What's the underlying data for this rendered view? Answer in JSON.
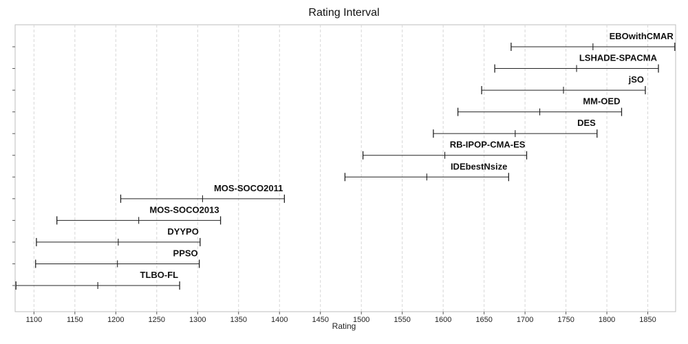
{
  "chart_data": {
    "type": "interval",
    "title": "Rating Interval",
    "xlabel": "Rating",
    "ylabel": "",
    "xlim": [
      1077,
      1884
    ],
    "x_ticks": [
      1100,
      1150,
      1200,
      1250,
      1300,
      1350,
      1400,
      1450,
      1500,
      1550,
      1600,
      1650,
      1700,
      1750,
      1800,
      1850
    ],
    "grid": "vertical dashed",
    "series": [
      {
        "name": "EBOwithCMAR",
        "low": 1683,
        "mid": 1783,
        "high": 1883
      },
      {
        "name": "LSHADE-SPACMA",
        "low": 1663,
        "mid": 1763,
        "high": 1863
      },
      {
        "name": "jSO",
        "low": 1647,
        "mid": 1747,
        "high": 1847
      },
      {
        "name": "MM-OED",
        "low": 1618,
        "mid": 1718,
        "high": 1818
      },
      {
        "name": "DES",
        "low": 1588,
        "mid": 1688,
        "high": 1788
      },
      {
        "name": "RB-IPOP-CMA-ES",
        "low": 1502,
        "mid": 1602,
        "high": 1702
      },
      {
        "name": "IDEbestNsize",
        "low": 1480,
        "mid": 1580,
        "high": 1680
      },
      {
        "name": "MOS-SOCO2011",
        "low": 1206,
        "mid": 1306,
        "high": 1406
      },
      {
        "name": "MOS-SOCO2013",
        "low": 1128,
        "mid": 1228,
        "high": 1328
      },
      {
        "name": "DYYPO",
        "low": 1103,
        "mid": 1203,
        "high": 1303
      },
      {
        "name": "PPSO",
        "low": 1102,
        "mid": 1202,
        "high": 1302
      },
      {
        "name": "TLBO-FL",
        "low": 1078,
        "mid": 1178,
        "high": 1278
      }
    ]
  }
}
